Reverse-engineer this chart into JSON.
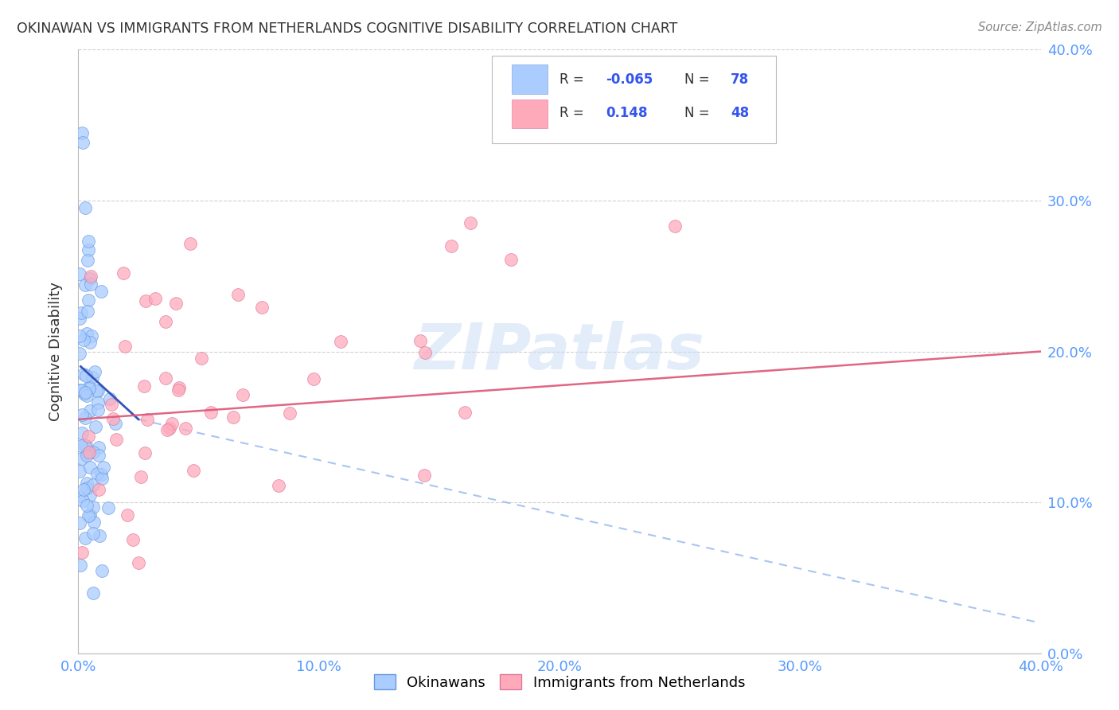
{
  "title": "OKINAWAN VS IMMIGRANTS FROM NETHERLANDS COGNITIVE DISABILITY CORRELATION CHART",
  "source": "Source: ZipAtlas.com",
  "ylabel": "Cognitive Disability",
  "xlim": [
    0.0,
    0.4
  ],
  "ylim": [
    0.0,
    0.4
  ],
  "legend_label1": "Okinawans",
  "legend_label2": "Immigrants from Netherlands",
  "R1": "-0.065",
  "N1": "78",
  "R2": "0.148",
  "N2": "48",
  "color1": "#aaccff",
  "color2": "#ffaabb",
  "line1_solid_color": "#3355bb",
  "line1_dash_color": "#99bbee",
  "line2_color": "#dd5577",
  "watermark": "ZIPatlas",
  "title_color": "#333333",
  "axis_color": "#5599ff",
  "blue_seed": 12,
  "pink_seed": 7,
  "blue_line_x0": 0.001,
  "blue_line_y0": 0.19,
  "blue_line_x1": 0.025,
  "blue_line_y1": 0.155,
  "blue_line_dash_x0": 0.025,
  "blue_line_dash_y0": 0.155,
  "blue_line_dash_x1": 0.4,
  "blue_line_dash_y1": 0.02,
  "pink_line_x0": 0.0,
  "pink_line_y0": 0.155,
  "pink_line_x1": 0.4,
  "pink_line_y1": 0.2
}
